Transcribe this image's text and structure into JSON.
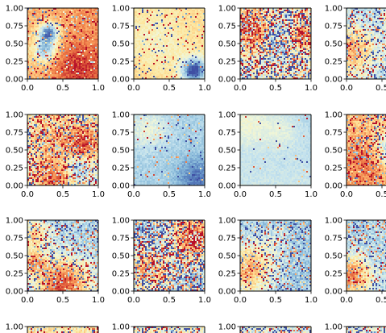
{
  "figure": {
    "grid_columns": 4,
    "grid_rows": 4,
    "colormap": "Spectral_r",
    "colormap_stops": [
      "#3f4fa3",
      "#5e89c2",
      "#8fbfdc",
      "#c4e2ee",
      "#f0f6d8",
      "#fde8a0",
      "#fcc07a",
      "#f48d52",
      "#de5a3a",
      "#b7112a"
    ],
    "frame_color": "#000000"
  },
  "chart_data": [
    {
      "type": "heatmap",
      "panel": "r1c1",
      "pattern": "warm field with a blue patch at the upper left",
      "xlim": [
        0,
        1
      ],
      "ylim": [
        0,
        1
      ],
      "x_ticks": [
        "0.0",
        "0.5",
        "1.0"
      ],
      "y_ticks": [
        "0.00",
        "0.25",
        "0.50",
        "0.75",
        "1.00"
      ]
    },
    {
      "type": "heatmap",
      "panel": "r1c2",
      "pattern": "pale cream field with a blue patch at the lower right",
      "xlim": [
        0,
        1
      ],
      "ylim": [
        0,
        1
      ],
      "x_ticks": [
        "0.0",
        "0.5",
        "1.0"
      ],
      "y_ticks": [
        "0.00",
        "0.25",
        "0.50",
        "0.75",
        "1.00"
      ]
    },
    {
      "type": "heatmap",
      "panel": "r1c3",
      "pattern": "noisy red and blue speckle across the whole panel",
      "xlim": [
        0,
        1
      ],
      "ylim": [
        0,
        1
      ],
      "x_ticks": [
        "0.0",
        "0.5",
        "1.0"
      ],
      "y_ticks": [
        "0.00",
        "0.25",
        "0.50",
        "0.75",
        "1.00"
      ]
    },
    {
      "type": "heatmap",
      "panel": "r1c4",
      "pattern": "blue field with red at the upper right and orange at the left",
      "xlim": [
        0,
        1
      ],
      "ylim": [
        0,
        1
      ],
      "x_ticks": [
        "0.0",
        "0.5"
      ],
      "y_ticks": [
        "0.00",
        "0.25",
        "0.50",
        "0.75",
        "1.00"
      ]
    },
    {
      "type": "heatmap",
      "panel": "r2c1",
      "pattern": "yellow and blue field with red speckle at the bottom and right",
      "xlim": [
        0,
        1
      ],
      "ylim": [
        0,
        1
      ],
      "x_ticks": [
        "0.0",
        "0.5",
        "1.0"
      ],
      "y_ticks": [
        "0.00",
        "0.25",
        "0.50",
        "0.75",
        "1.00"
      ]
    },
    {
      "type": "heatmap",
      "panel": "r2c2",
      "pattern": "mostly blue field, darker toward the lower right",
      "xlim": [
        0,
        1
      ],
      "ylim": [
        0,
        1
      ],
      "x_ticks": [
        "0.0",
        "0.5",
        "1.0"
      ],
      "y_ticks": [
        "0.00",
        "0.25",
        "0.50",
        "0.75",
        "1.00"
      ]
    },
    {
      "type": "heatmap",
      "panel": "r2c3",
      "pattern": "light blue field with pale areas at the top",
      "xlim": [
        0,
        1
      ],
      "ylim": [
        0,
        1
      ],
      "x_ticks": [
        "0.0",
        "0.5",
        "1.0"
      ],
      "y_ticks": [
        "0.00",
        "0.25",
        "0.50",
        "0.75",
        "1.00"
      ]
    },
    {
      "type": "heatmap",
      "panel": "r2c4",
      "pattern": "orange and red field with a blue patch at the right",
      "xlim": [
        0,
        1
      ],
      "ylim": [
        0,
        1
      ],
      "x_ticks": [
        "0.0",
        "0.5"
      ],
      "y_ticks": [
        "0.00",
        "0.25",
        "0.50",
        "0.75",
        "1.00"
      ]
    },
    {
      "type": "heatmap",
      "panel": "r3c1",
      "pattern": "blue field with a red band at the bottom",
      "xlim": [
        0,
        1
      ],
      "ylim": [
        0,
        1
      ],
      "x_ticks": [
        "0.0",
        "0.5",
        "1.0"
      ],
      "y_ticks": [
        "0.00",
        "0.25",
        "0.50",
        "0.75",
        "1.00"
      ]
    },
    {
      "type": "heatmap",
      "panel": "r3c2",
      "pattern": "noisy blue and red field with red at the upper right",
      "xlim": [
        0,
        1
      ],
      "ylim": [
        0,
        1
      ],
      "x_ticks": [
        "0.0",
        "0.5",
        "1.0"
      ],
      "y_ticks": [
        "0.00",
        "0.25",
        "0.50",
        "0.75",
        "1.00"
      ]
    },
    {
      "type": "heatmap",
      "panel": "r3c3",
      "pattern": "blue field with orange at the lower left",
      "xlim": [
        0,
        1
      ],
      "ylim": [
        0,
        1
      ],
      "x_ticks": [
        "0.0",
        "0.5",
        "1.0"
      ],
      "y_ticks": [
        "0.00",
        "0.25",
        "0.50",
        "0.75",
        "1.00"
      ]
    },
    {
      "type": "heatmap",
      "panel": "r3c4",
      "pattern": "blue field with orange at the lower left",
      "xlim": [
        0,
        1
      ],
      "ylim": [
        0,
        1
      ],
      "x_ticks": [
        "0.0",
        "0.5"
      ],
      "y_ticks": [
        "0.00",
        "0.25",
        "0.50",
        "0.75",
        "1.00"
      ]
    },
    {
      "type": "heatmap",
      "panel": "r4c1",
      "pattern": "pale yellow and blue speckle at the top edge",
      "xlim": [
        0,
        1
      ],
      "ylim": [
        0,
        1
      ],
      "x_ticks": [],
      "y_ticks": [
        "1.00"
      ]
    },
    {
      "type": "heatmap",
      "panel": "r4c2",
      "pattern": "mixed blue and yellow speckle at the top edge",
      "xlim": [
        0,
        1
      ],
      "ylim": [
        0,
        1
      ],
      "x_ticks": [],
      "y_ticks": [
        "1.00"
      ]
    },
    {
      "type": "heatmap",
      "panel": "r4c3",
      "pattern": "blue and orange speckle at the top edge",
      "xlim": [
        0,
        1
      ],
      "ylim": [
        0,
        1
      ],
      "x_ticks": [],
      "y_ticks": [
        "1.00"
      ]
    },
    {
      "type": "heatmap",
      "panel": "r4c4",
      "pattern": "blue and orange speckle at the top edge",
      "xlim": [
        0,
        1
      ],
      "ylim": [
        0,
        1
      ],
      "x_ticks": [],
      "y_ticks": [
        "1.00"
      ]
    }
  ]
}
